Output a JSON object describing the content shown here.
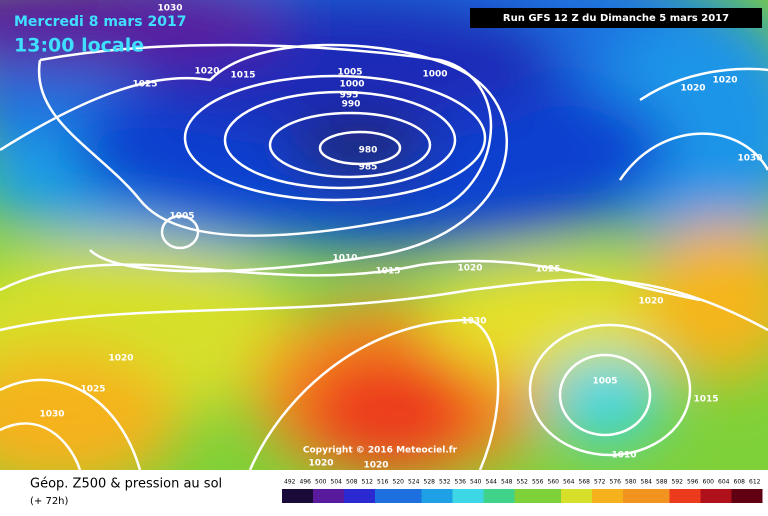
{
  "header": {
    "date": "Mercredi 8 mars 2017",
    "time": "13:00 locale",
    "run": "Run GFS 12 Z du Dimanche 5 mars 2017"
  },
  "isobar_labels": [
    1030,
    1025,
    1020,
    1015,
    1005,
    1000,
    995,
    990,
    1000,
    980,
    985,
    1005,
    1010,
    1015,
    1020,
    1025,
    1020,
    1020,
    1030,
    1020,
    1030,
    1020,
    1025,
    1030,
    1005,
    1015,
    1010,
    1020,
    1020
  ],
  "copyright": "Copyright © 2016 Meteociel.fr",
  "legend": {
    "title": "Géop. Z500 & pression au sol",
    "lead": "(+ 72h)",
    "scale": [
      492,
      496,
      500,
      504,
      508,
      512,
      516,
      520,
      524,
      528,
      532,
      536,
      540,
      544,
      548,
      552,
      556,
      560,
      564,
      568,
      572,
      576,
      580,
      584,
      588,
      592,
      596,
      600,
      604,
      608,
      612
    ]
  }
}
